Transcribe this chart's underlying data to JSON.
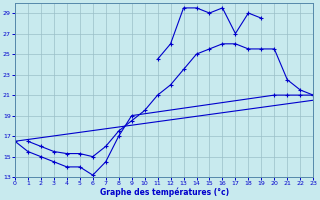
{
  "bg": "#c8eaee",
  "grid_color": "#9bbfc8",
  "lc": "#0000cc",
  "xlim": [
    0,
    23
  ],
  "ylim": [
    13,
    30
  ],
  "xticks": [
    0,
    1,
    2,
    3,
    4,
    5,
    6,
    7,
    8,
    9,
    10,
    11,
    12,
    13,
    14,
    15,
    16,
    17,
    18,
    19,
    20,
    21,
    22,
    23
  ],
  "yticks": [
    13,
    15,
    17,
    19,
    21,
    23,
    25,
    27,
    29
  ],
  "xlabel": "Graphe des températures (°c)",
  "series": [
    {
      "x": [
        11,
        12,
        13,
        14,
        15,
        16,
        17,
        18,
        19
      ],
      "y": [
        24.5,
        26.0,
        29.5,
        29.5,
        29.0,
        29.5,
        27.0,
        29.0,
        28.5
      ]
    },
    {
      "x": [
        1,
        2,
        3,
        4,
        5,
        6,
        7,
        8,
        9,
        10,
        11,
        12,
        13,
        14,
        15,
        16,
        17,
        18,
        19,
        20,
        21,
        22,
        23
      ],
      "y": [
        16.5,
        16.0,
        15.5,
        15.3,
        15.3,
        15.0,
        16.0,
        17.5,
        18.5,
        19.5,
        21.0,
        22.0,
        23.5,
        25.0,
        25.5,
        26.0,
        26.0,
        25.5,
        25.5,
        25.5,
        22.5,
        21.5,
        21.0
      ]
    },
    {
      "x": [
        0,
        1,
        2,
        3,
        4,
        5,
        6,
        7,
        8,
        9,
        20,
        21,
        22,
        23
      ],
      "y": [
        16.5,
        15.5,
        15.0,
        14.5,
        14.0,
        14.0,
        13.2,
        14.5,
        17.0,
        19.0,
        21.0,
        21.0,
        21.0,
        21.0
      ]
    },
    {
      "x": [
        0,
        23
      ],
      "y": [
        16.5,
        20.5
      ]
    }
  ]
}
